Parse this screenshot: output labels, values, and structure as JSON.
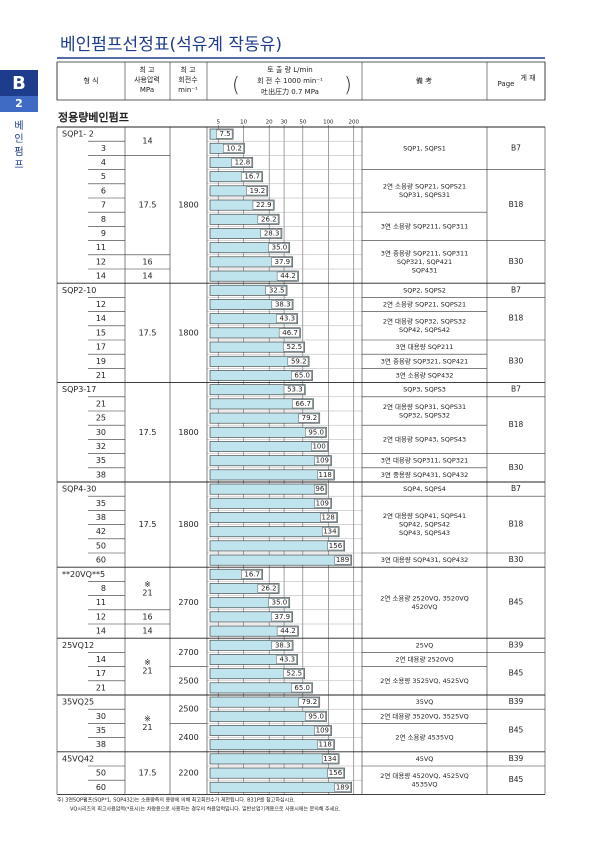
{
  "header": {
    "title": "베인펌프선정표(석유계 작동유)",
    "side_tab": {
      "letter": "B",
      "number": "2",
      "label": [
        "베",
        "인",
        "펌",
        "프"
      ]
    },
    "columns": {
      "model": "형   식",
      "pressure": [
        "최 고",
        "사용압력",
        "MPa"
      ],
      "rpm": [
        "최 고",
        "회전수",
        "min⁻¹"
      ],
      "flow": [
        "토 출 량    L/min",
        "회 전 수   1000 min⁻¹",
        "吐出圧力     0.7 MPa"
      ],
      "remarks": "備   考",
      "page": [
        "Page",
        "게 재"
      ]
    }
  },
  "section_title": "정용량베인펌프",
  "chart_data": {
    "type": "bar",
    "orientation": "horizontal",
    "log_scale": true,
    "grid": true,
    "color": "#bfe4ee",
    "xlim": [
      4,
      250
    ],
    "xticks": [
      5,
      10,
      20,
      30,
      50,
      100,
      200
    ],
    "groups": [
      {
        "categories": [
          "SQP1- 2",
          "3",
          "4",
          "5",
          "6",
          "7",
          "8",
          "9",
          "11",
          "12",
          "14"
        ],
        "values": [
          7.5,
          10.2,
          12.8,
          16.7,
          19.2,
          22.9,
          26.2,
          28.3,
          35.0,
          37.9,
          44.2
        ],
        "value_labels": [
          "7.5",
          "10.2",
          "12.8",
          "16.7",
          "19.2",
          "22.9",
          "26.2",
          "28.3",
          "35.0",
          "37.9",
          "44.2"
        ],
        "pressure": [
          [
            "14"
          ],
          null,
          [
            "17.5"
          ],
          null,
          null,
          null,
          null,
          null,
          null,
          [
            "16"
          ],
          [
            "14"
          ]
        ],
        "rpm": [
          "1800",
          null,
          null,
          null,
          null,
          null,
          null,
          null,
          null,
          null,
          null
        ],
        "remarks": [
          [
            "SQP1, SQPS1"
          ],
          null,
          null,
          [
            "2연 소용량 SQP21, SQPS21",
            "SQP31, SQPS31"
          ],
          null,
          null,
          [
            "3연 소용량 SQP211, SQP311"
          ],
          null,
          [
            "3연 중용량 SQP211, SQP311",
            "SQP321, SQP421",
            "SQP431"
          ],
          null,
          null
        ],
        "pages": [
          "B7",
          null,
          null,
          "B18",
          null,
          null,
          null,
          null,
          "B30",
          null,
          null
        ]
      },
      {
        "categories": [
          "SQP2-10",
          "12",
          "14",
          "15",
          "17",
          "19",
          "21"
        ],
        "values": [
          32.5,
          38.3,
          43.3,
          46.7,
          52.5,
          59.2,
          65.0
        ],
        "value_labels": [
          "32.5",
          "38.3",
          "43.3",
          "46.7",
          "52.5",
          "59.2",
          "65.0"
        ],
        "pressure": [
          [
            "17.5"
          ],
          null,
          null,
          null,
          null,
          null,
          null
        ],
        "rpm": [
          "1800",
          null,
          null,
          null,
          null,
          null,
          null
        ],
        "remarks": [
          [
            "SQP2, SQPS2"
          ],
          [
            "2연 소용량 SQP21, SQPS21"
          ],
          [
            "2연 대용량 SQP32, SQPS32",
            "SQP42, SQPS42"
          ],
          null,
          [
            "3연 대용량 SQP211"
          ],
          [
            "3연 중용량 SQP321, SQP421"
          ],
          [
            "3연 소용량 SQP432"
          ]
        ],
        "pages": [
          "B7",
          "B18",
          null,
          null,
          "B30",
          null,
          null
        ]
      },
      {
        "categories": [
          "SQP3-17",
          "21",
          "25",
          "30",
          "32",
          "35",
          "38"
        ],
        "values": [
          53.3,
          66.7,
          79.2,
          95.0,
          100,
          109,
          118
        ],
        "value_labels": [
          "53.3",
          "66.7",
          "79.2",
          "95.0",
          "100",
          "109",
          "118"
        ],
        "pressure": [
          [
            "17.5"
          ],
          null,
          null,
          null,
          null,
          null,
          null
        ],
        "rpm": [
          "1800",
          null,
          null,
          null,
          null,
          null,
          null
        ],
        "remarks": [
          [
            "SQP3, SQPS3"
          ],
          [
            "2연 대용량 SQP31, SQPS31",
            "SQP32, SQPS32"
          ],
          null,
          [
            "2연 대용량 SQP43, SQPS43"
          ],
          null,
          [
            "3연 대용량 SQP311, SQP321"
          ],
          [
            "3연 중용량 SQP431, SQP432"
          ]
        ],
        "pages": [
          "B7",
          "B18",
          null,
          null,
          null,
          "B30",
          null
        ]
      },
      {
        "categories": [
          "SQP4-30",
          "35",
          "38",
          "42",
          "50",
          "60"
        ],
        "values": [
          96,
          109,
          128,
          134,
          156,
          189
        ],
        "value_labels": [
          "96",
          "109",
          "128",
          "134",
          "156",
          "189"
        ],
        "pressure": [
          [
            "17.5"
          ],
          null,
          null,
          null,
          null,
          null
        ],
        "rpm": [
          "1800",
          null,
          null,
          null,
          null,
          null
        ],
        "remarks": [
          [
            "SQP4, SQPS4"
          ],
          [
            "2연 대용량 SQP41, SQPS41",
            "SQP42, SQPS42",
            "SQP43, SQPS43"
          ],
          null,
          null,
          null,
          [
            "3연 대용량 SQP431, SQP432"
          ]
        ],
        "pages": [
          "B7",
          "B18",
          null,
          null,
          null,
          "B30"
        ]
      },
      {
        "categories": [
          "**20VQ**5",
          "8",
          "11",
          "12",
          "14"
        ],
        "values": [
          16.7,
          26.2,
          35.0,
          37.9,
          44.2
        ],
        "value_labels": [
          "16.7",
          "26.2",
          "35.0",
          "37.9",
          "44.2"
        ],
        "pressure": [
          [
            "※",
            "21"
          ],
          null,
          null,
          [
            "16"
          ],
          [
            "14"
          ]
        ],
        "rpm": [
          "2700",
          null,
          null,
          null,
          null
        ],
        "remarks": [
          [
            "2연 소용량 2520VQ, 3520VQ",
            "4520VQ"
          ],
          null,
          null,
          null,
          null
        ],
        "pages": [
          "B45",
          null,
          null,
          null,
          null
        ]
      },
      {
        "categories": [
          "25VQ12",
          "14",
          "17",
          "21"
        ],
        "values": [
          38.3,
          43.3,
          52.5,
          65.0
        ],
        "value_labels": [
          "38.3",
          "43.3",
          "52.5",
          "65.0"
        ],
        "pressure": [
          [
            "※",
            "21"
          ],
          null,
          null,
          null
        ],
        "rpm": [
          "2700",
          null,
          "2500",
          null
        ],
        "remarks": [
          [
            "25VQ"
          ],
          [
            "2연 대용량 2520VQ"
          ],
          [
            "2연 소용량 3525VQ, 4525VQ"
          ],
          null
        ],
        "pages": [
          "B39",
          "B45",
          null,
          null
        ]
      },
      {
        "categories": [
          "35VQ25",
          "30",
          "35",
          "38"
        ],
        "values": [
          79.2,
          95.0,
          109,
          118
        ],
        "value_labels": [
          "79.2",
          "95.0",
          "109",
          "118"
        ],
        "pressure": [
          [
            "※",
            "21"
          ],
          null,
          null,
          null
        ],
        "rpm": [
          "2500",
          null,
          "2400",
          null
        ],
        "remarks": [
          [
            "35VQ"
          ],
          [
            "2연 대용량 3520VQ, 3525VQ"
          ],
          [
            "2연 소용량 4535VQ"
          ],
          null
        ],
        "pages": [
          "B39",
          "B45",
          null,
          null
        ]
      },
      {
        "categories": [
          "45VQ42",
          "50",
          "60"
        ],
        "values": [
          134,
          156,
          189
        ],
        "value_labels": [
          "134",
          "156",
          "189"
        ],
        "pressure": [
          [
            "17.5"
          ],
          null,
          null
        ],
        "rpm": [
          "2200",
          null,
          null
        ],
        "remarks": [
          [
            "45VQ"
          ],
          [
            "2연 대용량 4520VQ, 4525VQ",
            "4535VQ"
          ],
          null
        ],
        "pages": [
          "B39",
          "B45",
          null
        ]
      }
    ]
  },
  "footnotes": [
    "주)  3연SQP펌프(SQP*1, SQP432)는 소용량측의 용량에 의해 최고회전수가 제한됩니다. B31P를 참고하십시요.",
    "VQ시리즈의 최고사용압력(*표시)는 차량용으로 사용하는 경우의 허용압력입니다. 일반산업기계용으로 사용시에는 문의해 주세요."
  ]
}
